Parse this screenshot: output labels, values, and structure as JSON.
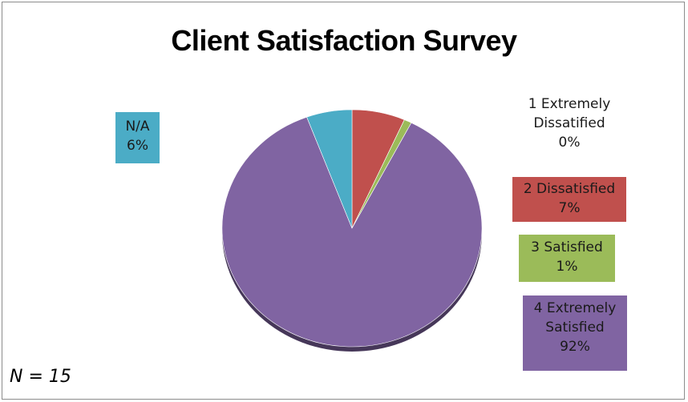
{
  "chart_data": {
    "type": "pie",
    "title": "Client Satisfaction Survey",
    "slices": [
      {
        "name": "N/A",
        "value": 6,
        "label": "6%",
        "color": "#4bacc6"
      },
      {
        "name": "1 Extremely Dissatified",
        "value": 0,
        "label": "0%",
        "color": "#ffffff"
      },
      {
        "name": "2 Dissatisfied",
        "value": 7,
        "label": "7%",
        "color": "#c0504d"
      },
      {
        "name": "3 Satisfied",
        "value": 1,
        "label": "1%",
        "color": "#9bbb59"
      },
      {
        "name": "4 Extremely Satisfied",
        "value": 92,
        "label": "92%",
        "color": "#8064a2"
      }
    ],
    "start_slice": "2 Dissatisfied",
    "sample_note": "N = 15"
  }
}
